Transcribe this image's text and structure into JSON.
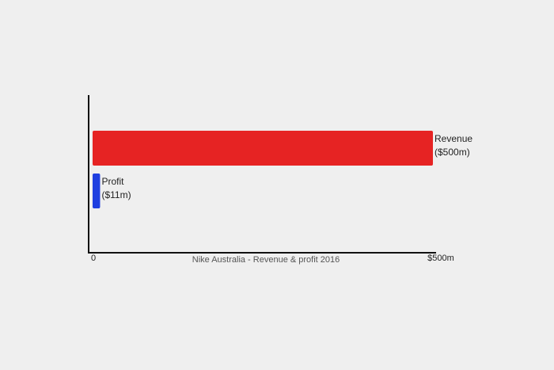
{
  "chart_data": {
    "type": "bar",
    "orientation": "horizontal",
    "title": "",
    "xlabel": "Nike Australia - Revenue & profit 2016",
    "ylabel": "",
    "xlim": [
      0,
      500
    ],
    "x_ticks": [
      "0",
      "$500m"
    ],
    "grid": false,
    "categories": [
      "Revenue",
      "Profit"
    ],
    "values": [
      500,
      11
    ],
    "data_labels": [
      [
        "Revenue",
        "($500m)"
      ],
      [
        "Profit",
        "($11m)"
      ]
    ],
    "colors": [
      "#e62323",
      "#1f3fe0"
    ],
    "unit": "$m"
  },
  "colors": {
    "background": "#efefef",
    "axis": "#111111"
  }
}
